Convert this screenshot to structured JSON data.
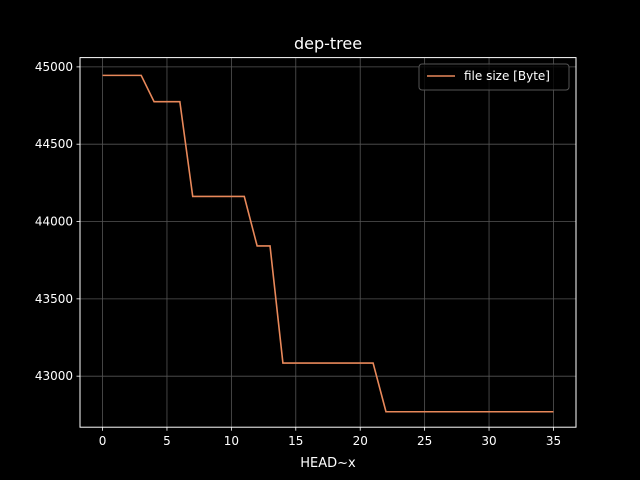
{
  "chart_data": {
    "type": "line",
    "title": "dep-tree",
    "xlabel": "HEAD~x",
    "ylabel": "",
    "xlim": [
      -1.75,
      36.75
    ],
    "ylim": [
      42670,
      45060
    ],
    "xticks": [
      0,
      5,
      10,
      15,
      20,
      25,
      30,
      35
    ],
    "yticks": [
      43000,
      43500,
      44000,
      44500,
      45000
    ],
    "grid": true,
    "legend": {
      "placement": "top-right"
    },
    "colors": {
      "background": "#000000",
      "line": "#e8885a",
      "grid": "#555555",
      "axes": "#ffffff",
      "text": "#ffffff"
    },
    "series": [
      {
        "name": "file size [Byte]",
        "x": [
          0,
          1,
          2,
          3,
          4,
          5,
          6,
          7,
          8,
          9,
          10,
          11,
          12,
          13,
          14,
          15,
          16,
          17,
          18,
          19,
          20,
          21,
          22,
          23,
          24,
          25,
          26,
          27,
          28,
          29,
          30,
          31,
          32,
          33,
          34,
          35
        ],
        "y": [
          44945,
          44945,
          44945,
          44945,
          44775,
          44775,
          44775,
          44162,
          44162,
          44162,
          44162,
          44162,
          43842,
          43842,
          43085,
          43085,
          43085,
          43085,
          43085,
          43085,
          43085,
          43085,
          42770,
          42770,
          42770,
          42770,
          42770,
          42770,
          42770,
          42770,
          42770,
          42770,
          42770,
          42770,
          42770,
          42770
        ]
      }
    ]
  }
}
